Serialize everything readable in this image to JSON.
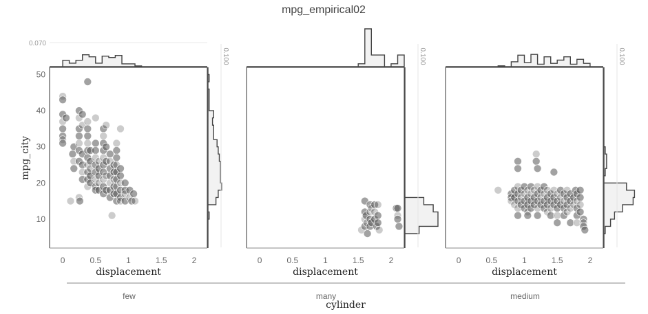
{
  "chart_data": {
    "type": "scatter",
    "title": "mpg_empirical02",
    "xlabel": "displacement",
    "ylabel": "mpg_city",
    "facet_label": "cylinder",
    "xlim": [
      -0.2,
      2.2
    ],
    "ylim": [
      2,
      52
    ],
    "x_ticks": [
      "0",
      "0.5",
      "1",
      "1.5",
      "2"
    ],
    "y_ticks": [
      "10",
      "20",
      "30",
      "40",
      "50"
    ],
    "top_marginal_tick": "0.070",
    "right_marginal_tick": "0.100",
    "point_color": "#555555",
    "facets": [
      {
        "label": "few",
        "points": [
          [
            0.0,
            44
          ],
          [
            0.0,
            43
          ],
          [
            0.0,
            39
          ],
          [
            0.0,
            37
          ],
          [
            0.0,
            35
          ],
          [
            0.0,
            33
          ],
          [
            0.0,
            32
          ],
          [
            0.0,
            31
          ],
          [
            0.05,
            38
          ],
          [
            0.12,
            15
          ],
          [
            0.15,
            28
          ],
          [
            0.17,
            30
          ],
          [
            0.17,
            26
          ],
          [
            0.17,
            24
          ],
          [
            0.25,
            40
          ],
          [
            0.25,
            38
          ],
          [
            0.25,
            35
          ],
          [
            0.25,
            33
          ],
          [
            0.25,
            31
          ],
          [
            0.25,
            29
          ],
          [
            0.25,
            26
          ],
          [
            0.25,
            16
          ],
          [
            0.26,
            15
          ],
          [
            0.3,
            39
          ],
          [
            0.3,
            36
          ],
          [
            0.3,
            28
          ],
          [
            0.3,
            25
          ],
          [
            0.3,
            23
          ],
          [
            0.3,
            21
          ],
          [
            0.38,
            48
          ],
          [
            0.38,
            37
          ],
          [
            0.38,
            35
          ],
          [
            0.38,
            33
          ],
          [
            0.38,
            31
          ],
          [
            0.38,
            29
          ],
          [
            0.38,
            27
          ],
          [
            0.38,
            25
          ],
          [
            0.38,
            23
          ],
          [
            0.38,
            21
          ],
          [
            0.38,
            19
          ],
          [
            0.42,
            29
          ],
          [
            0.42,
            26
          ],
          [
            0.42,
            24
          ],
          [
            0.42,
            22
          ],
          [
            0.42,
            20
          ],
          [
            0.5,
            38
          ],
          [
            0.5,
            31
          ],
          [
            0.5,
            29
          ],
          [
            0.5,
            27
          ],
          [
            0.5,
            25
          ],
          [
            0.5,
            23
          ],
          [
            0.5,
            21
          ],
          [
            0.5,
            19
          ],
          [
            0.5,
            18
          ],
          [
            0.55,
            26
          ],
          [
            0.55,
            24
          ],
          [
            0.55,
            22
          ],
          [
            0.55,
            20
          ],
          [
            0.55,
            18
          ],
          [
            0.62,
            35
          ],
          [
            0.62,
            33
          ],
          [
            0.62,
            31
          ],
          [
            0.62,
            29
          ],
          [
            0.62,
            27
          ],
          [
            0.62,
            25
          ],
          [
            0.62,
            23
          ],
          [
            0.62,
            21
          ],
          [
            0.62,
            19
          ],
          [
            0.62,
            17
          ],
          [
            0.66,
            36
          ],
          [
            0.66,
            30
          ],
          [
            0.66,
            26
          ],
          [
            0.66,
            22
          ],
          [
            0.66,
            18
          ],
          [
            0.72,
            28
          ],
          [
            0.72,
            26
          ],
          [
            0.72,
            24
          ],
          [
            0.72,
            22
          ],
          [
            0.72,
            20
          ],
          [
            0.72,
            18
          ],
          [
            0.72,
            16
          ],
          [
            0.75,
            11
          ],
          [
            0.78,
            25
          ],
          [
            0.78,
            23
          ],
          [
            0.78,
            21
          ],
          [
            0.78,
            19
          ],
          [
            0.78,
            17
          ],
          [
            0.82,
            31
          ],
          [
            0.82,
            29
          ],
          [
            0.82,
            27
          ],
          [
            0.82,
            25
          ],
          [
            0.82,
            23
          ],
          [
            0.82,
            21
          ],
          [
            0.82,
            19
          ],
          [
            0.82,
            17
          ],
          [
            0.82,
            15
          ],
          [
            0.88,
            35
          ],
          [
            0.88,
            24
          ],
          [
            0.88,
            22
          ],
          [
            0.88,
            20
          ],
          [
            0.88,
            18
          ],
          [
            0.88,
            16
          ],
          [
            0.88,
            15
          ],
          [
            0.95,
            20
          ],
          [
            0.95,
            18
          ],
          [
            0.95,
            17
          ],
          [
            0.95,
            15
          ],
          [
            1.02,
            18
          ],
          [
            1.02,
            16
          ],
          [
            1.05,
            15
          ],
          [
            1.08,
            17
          ],
          [
            1.1,
            15
          ]
        ]
      },
      {
        "label": "many",
        "points": [
          [
            1.55,
            7
          ],
          [
            1.6,
            15
          ],
          [
            1.6,
            12
          ],
          [
            1.6,
            10
          ],
          [
            1.6,
            8
          ],
          [
            1.62,
            11
          ],
          [
            1.63,
            9
          ],
          [
            1.64,
            6
          ],
          [
            1.68,
            14
          ],
          [
            1.68,
            12
          ],
          [
            1.68,
            10
          ],
          [
            1.68,
            8
          ],
          [
            1.7,
            13
          ],
          [
            1.7,
            9
          ],
          [
            1.75,
            14
          ],
          [
            1.75,
            12
          ],
          [
            1.75,
            10
          ],
          [
            1.78,
            8
          ],
          [
            1.8,
            14
          ],
          [
            1.8,
            11
          ],
          [
            1.8,
            9
          ],
          [
            1.82,
            7
          ],
          [
            2.08,
            13
          ],
          [
            2.1,
            13
          ],
          [
            2.1,
            11
          ],
          [
            2.1,
            10
          ],
          [
            2.12,
            8
          ]
        ]
      },
      {
        "label": "medium",
        "points": [
          [
            0.6,
            18
          ],
          [
            0.8,
            17
          ],
          [
            0.8,
            16
          ],
          [
            0.8,
            15
          ],
          [
            0.85,
            18
          ],
          [
            0.85,
            16
          ],
          [
            0.85,
            14
          ],
          [
            0.9,
            26
          ],
          [
            0.9,
            24
          ],
          [
            0.9,
            19
          ],
          [
            0.9,
            17
          ],
          [
            0.9,
            15
          ],
          [
            0.9,
            13
          ],
          [
            0.9,
            11
          ],
          [
            0.95,
            18
          ],
          [
            0.95,
            16
          ],
          [
            0.95,
            14
          ],
          [
            1.0,
            19
          ],
          [
            1.0,
            17
          ],
          [
            1.0,
            15
          ],
          [
            1.0,
            13
          ],
          [
            1.05,
            18
          ],
          [
            1.05,
            16
          ],
          [
            1.05,
            14
          ],
          [
            1.05,
            12
          ],
          [
            1.05,
            11
          ],
          [
            1.1,
            19
          ],
          [
            1.1,
            17
          ],
          [
            1.1,
            15
          ],
          [
            1.1,
            13
          ],
          [
            1.15,
            18
          ],
          [
            1.15,
            16
          ],
          [
            1.15,
            14
          ],
          [
            1.18,
            28
          ],
          [
            1.18,
            26
          ],
          [
            1.2,
            24
          ],
          [
            1.2,
            19
          ],
          [
            1.2,
            17
          ],
          [
            1.2,
            15
          ],
          [
            1.2,
            13
          ],
          [
            1.2,
            11
          ],
          [
            1.25,
            18
          ],
          [
            1.25,
            16
          ],
          [
            1.25,
            14
          ],
          [
            1.3,
            19
          ],
          [
            1.3,
            17
          ],
          [
            1.3,
            15
          ],
          [
            1.3,
            13
          ],
          [
            1.35,
            18
          ],
          [
            1.35,
            16
          ],
          [
            1.35,
            14
          ],
          [
            1.35,
            12
          ],
          [
            1.4,
            17
          ],
          [
            1.4,
            15
          ],
          [
            1.4,
            13
          ],
          [
            1.4,
            11
          ],
          [
            1.45,
            23
          ],
          [
            1.45,
            18
          ],
          [
            1.45,
            16
          ],
          [
            1.45,
            14
          ],
          [
            1.5,
            17
          ],
          [
            1.5,
            15
          ],
          [
            1.5,
            13
          ],
          [
            1.5,
            11
          ],
          [
            1.5,
            9
          ],
          [
            1.55,
            18
          ],
          [
            1.55,
            16
          ],
          [
            1.55,
            14
          ],
          [
            1.6,
            17
          ],
          [
            1.6,
            15
          ],
          [
            1.6,
            13
          ],
          [
            1.6,
            11
          ],
          [
            1.65,
            18
          ],
          [
            1.65,
            16
          ],
          [
            1.65,
            14
          ],
          [
            1.65,
            12
          ],
          [
            1.7,
            17
          ],
          [
            1.7,
            15
          ],
          [
            1.7,
            13
          ],
          [
            1.7,
            9
          ],
          [
            1.75,
            16
          ],
          [
            1.75,
            14
          ],
          [
            1.78,
            18
          ],
          [
            1.8,
            17
          ],
          [
            1.8,
            15
          ],
          [
            1.8,
            13
          ],
          [
            1.8,
            11
          ],
          [
            1.8,
            9
          ],
          [
            1.85,
            18
          ],
          [
            1.85,
            16
          ],
          [
            1.85,
            14
          ],
          [
            1.85,
            12
          ],
          [
            1.9,
            10
          ],
          [
            1.9,
            9
          ],
          [
            1.9,
            8
          ],
          [
            1.92,
            7
          ]
        ]
      }
    ]
  }
}
